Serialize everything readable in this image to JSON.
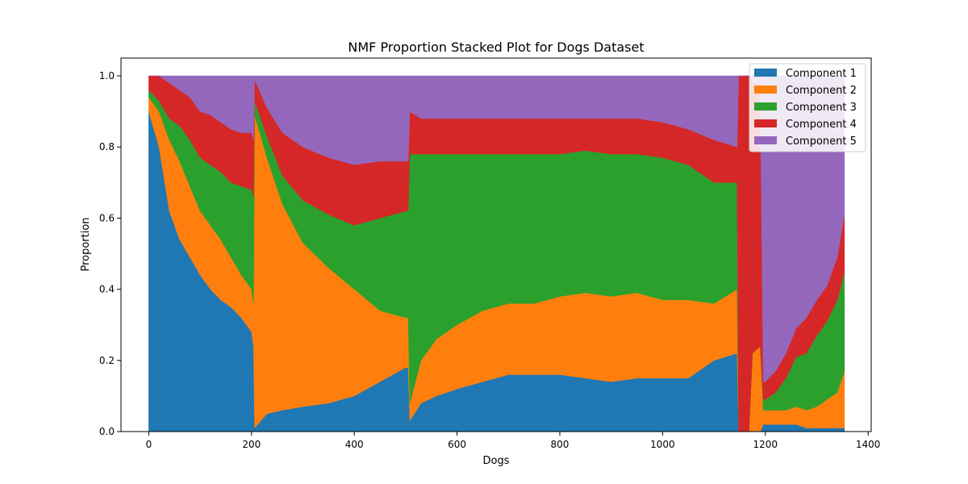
{
  "chart_data": {
    "type": "area",
    "stacked": true,
    "title": "NMF Proportion Stacked Plot for Dogs Dataset",
    "xlabel": "Dogs",
    "ylabel": "Proportion",
    "xlim": [
      -54,
      1406
    ],
    "ylim": [
      0,
      1.05
    ],
    "xticks": [
      0,
      200,
      400,
      600,
      800,
      1000,
      1200,
      1400
    ],
    "yticks": [
      0.0,
      0.2,
      0.4,
      0.6,
      0.8,
      1.0
    ],
    "xtick_labels": [
      "0",
      "200",
      "400",
      "600",
      "800",
      "1000",
      "1200",
      "1400"
    ],
    "ytick_labels": [
      "0.0",
      "0.2",
      "0.4",
      "0.6",
      "0.8",
      "1.0"
    ],
    "grid": false,
    "legend_position": "top-right",
    "x": [
      0,
      20,
      40,
      60,
      80,
      100,
      120,
      140,
      160,
      180,
      200,
      204,
      206,
      230,
      260,
      300,
      350,
      400,
      450,
      500,
      505,
      508,
      530,
      560,
      600,
      650,
      700,
      750,
      800,
      850,
      900,
      950,
      1000,
      1050,
      1100,
      1145,
      1148,
      1160,
      1168,
      1175,
      1190,
      1196,
      1200,
      1220,
      1240,
      1260,
      1280,
      1300,
      1320,
      1340,
      1354
    ],
    "series": [
      {
        "name": "Component 1",
        "color": "#1f77b4",
        "values": [
          0.9,
          0.8,
          0.62,
          0.54,
          0.49,
          0.44,
          0.4,
          0.37,
          0.35,
          0.32,
          0.28,
          0.24,
          0.01,
          0.05,
          0.06,
          0.07,
          0.08,
          0.1,
          0.14,
          0.18,
          0.18,
          0.03,
          0.08,
          0.1,
          0.12,
          0.14,
          0.16,
          0.16,
          0.16,
          0.15,
          0.14,
          0.15,
          0.15,
          0.15,
          0.2,
          0.22,
          0.0,
          0.0,
          0.0,
          0.0,
          0.0,
          0.02,
          0.02,
          0.02,
          0.02,
          0.02,
          0.01,
          0.01,
          0.01,
          0.01,
          0.01
        ]
      },
      {
        "name": "Component 2",
        "color": "#ff7f0e",
        "values": [
          0.04,
          0.1,
          0.2,
          0.22,
          0.2,
          0.18,
          0.18,
          0.17,
          0.14,
          0.12,
          0.12,
          0.12,
          0.88,
          0.72,
          0.58,
          0.46,
          0.38,
          0.3,
          0.2,
          0.14,
          0.14,
          0.05,
          0.12,
          0.16,
          0.18,
          0.2,
          0.2,
          0.2,
          0.22,
          0.24,
          0.24,
          0.24,
          0.22,
          0.22,
          0.16,
          0.18,
          0.0,
          0.0,
          0.0,
          0.22,
          0.24,
          0.04,
          0.04,
          0.04,
          0.04,
          0.05,
          0.05,
          0.06,
          0.08,
          0.1,
          0.16
        ]
      },
      {
        "name": "Component 3",
        "color": "#2ca02c",
        "values": [
          0.02,
          0.03,
          0.06,
          0.1,
          0.13,
          0.15,
          0.17,
          0.19,
          0.21,
          0.25,
          0.28,
          0.3,
          0.04,
          0.06,
          0.08,
          0.12,
          0.15,
          0.18,
          0.26,
          0.3,
          0.3,
          0.7,
          0.58,
          0.52,
          0.48,
          0.44,
          0.42,
          0.42,
          0.4,
          0.4,
          0.4,
          0.39,
          0.4,
          0.38,
          0.34,
          0.3,
          0.0,
          0.0,
          0.0,
          0.0,
          0.0,
          0.03,
          0.03,
          0.05,
          0.09,
          0.14,
          0.16,
          0.2,
          0.22,
          0.26,
          0.28
        ]
      },
      {
        "name": "Component 4",
        "color": "#d62728",
        "values": [
          0.04,
          0.07,
          0.1,
          0.1,
          0.12,
          0.13,
          0.14,
          0.14,
          0.15,
          0.15,
          0.16,
          0.16,
          0.06,
          0.08,
          0.12,
          0.15,
          0.16,
          0.17,
          0.16,
          0.14,
          0.14,
          0.12,
          0.1,
          0.1,
          0.1,
          0.1,
          0.1,
          0.1,
          0.1,
          0.09,
          0.1,
          0.1,
          0.1,
          0.1,
          0.12,
          0.1,
          1.0,
          1.0,
          1.0,
          0.76,
          0.74,
          0.05,
          0.05,
          0.06,
          0.07,
          0.08,
          0.1,
          0.1,
          0.1,
          0.12,
          0.16
        ]
      },
      {
        "name": "Component 5",
        "color": "#9467bd",
        "values": [
          0.0,
          0.0,
          0.02,
          0.04,
          0.06,
          0.1,
          0.11,
          0.13,
          0.15,
          0.16,
          0.16,
          0.18,
          0.01,
          0.09,
          0.16,
          0.2,
          0.23,
          0.25,
          0.24,
          0.24,
          0.24,
          0.1,
          0.12,
          0.12,
          0.12,
          0.12,
          0.12,
          0.12,
          0.12,
          0.12,
          0.12,
          0.12,
          0.13,
          0.15,
          0.18,
          0.2,
          0.0,
          0.0,
          0.0,
          0.02,
          0.02,
          0.86,
          0.86,
          0.83,
          0.78,
          0.71,
          0.68,
          0.63,
          0.59,
          0.51,
          0.39
        ]
      }
    ]
  }
}
